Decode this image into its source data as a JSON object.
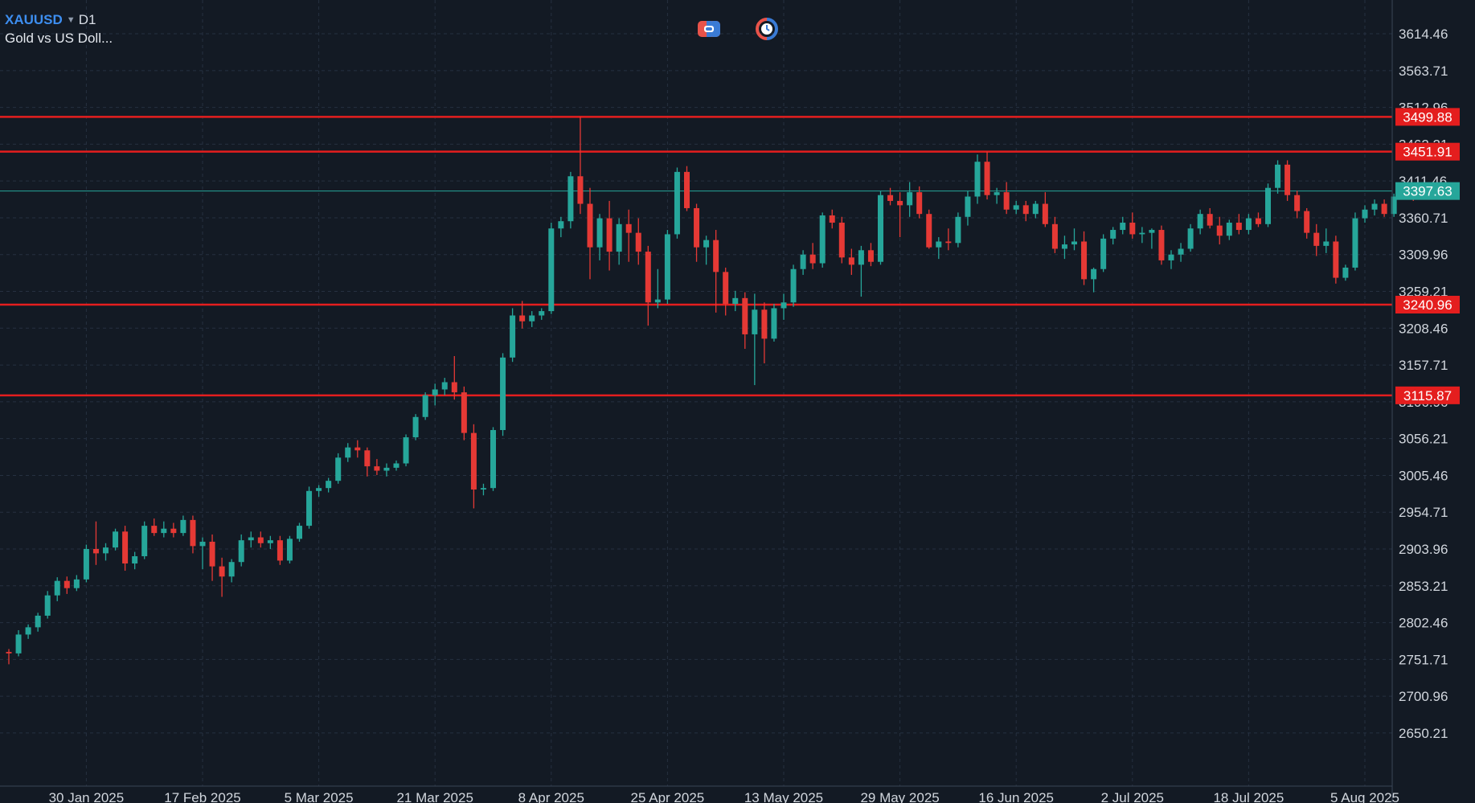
{
  "header": {
    "symbol": "XAUUSD",
    "timeframe": "D1",
    "description": "Gold vs US Doll..."
  },
  "toolbar": {
    "icons": [
      "one-click-trading-icon",
      "trade-timer-icon"
    ]
  },
  "colors": {
    "background": "#131a24",
    "grid": "#263040",
    "bull": "#26a69a",
    "bear": "#e53935",
    "level": "#e41e1e",
    "current_price": "#26a69a",
    "axis_text": "#d1d6dd"
  },
  "chart_data": {
    "type": "candlestick",
    "symbol": "XAUUSD",
    "timeframe": "D1",
    "ylim": [
      2608,
      3640
    ],
    "y_ticks": [
      3614.46,
      3563.71,
      3512.96,
      3462.21,
      3411.46,
      3360.71,
      3309.96,
      3259.21,
      3208.46,
      3157.71,
      3106.96,
      3056.21,
      3005.46,
      2954.71,
      2903.96,
      2853.21,
      2802.46,
      2751.71,
      2700.96,
      2650.21
    ],
    "x_ticks": [
      {
        "index": 8,
        "label": "30 Jan 2025"
      },
      {
        "index": 20,
        "label": "17 Feb 2025"
      },
      {
        "index": 32,
        "label": "5 Mar 2025"
      },
      {
        "index": 44,
        "label": "21 Mar 2025"
      },
      {
        "index": 56,
        "label": "8 Apr 2025"
      },
      {
        "index": 68,
        "label": "25 Apr 2025"
      },
      {
        "index": 80,
        "label": "13 May 2025"
      },
      {
        "index": 92,
        "label": "29 May 2025"
      },
      {
        "index": 104,
        "label": "16 Jun 2025"
      },
      {
        "index": 116,
        "label": "2 Jul 2025"
      },
      {
        "index": 128,
        "label": "18 Jul 2025"
      },
      {
        "index": 140,
        "label": "5 Aug 2025"
      }
    ],
    "horizontal_levels": [
      3499.88,
      3451.91,
      3240.96,
      3115.87
    ],
    "current_price": 3397.63,
    "candles": [
      [
        2762,
        2766,
        2745,
        2760
      ],
      [
        2760,
        2792,
        2756,
        2786
      ],
      [
        2786,
        2800,
        2780,
        2796
      ],
      [
        2796,
        2816,
        2790,
        2812
      ],
      [
        2812,
        2846,
        2808,
        2840
      ],
      [
        2840,
        2865,
        2832,
        2860
      ],
      [
        2860,
        2866,
        2842,
        2850
      ],
      [
        2850,
        2868,
        2846,
        2862
      ],
      [
        2862,
        2910,
        2858,
        2904
      ],
      [
        2904,
        2942,
        2882,
        2898
      ],
      [
        2898,
        2912,
        2888,
        2906
      ],
      [
        2906,
        2932,
        2902,
        2928
      ],
      [
        2928,
        2936,
        2874,
        2884
      ],
      [
        2884,
        2900,
        2876,
        2894
      ],
      [
        2894,
        2942,
        2890,
        2936
      ],
      [
        2936,
        2946,
        2922,
        2926
      ],
      [
        2926,
        2942,
        2920,
        2932
      ],
      [
        2932,
        2940,
        2920,
        2926
      ],
      [
        2926,
        2950,
        2922,
        2944
      ],
      [
        2944,
        2950,
        2898,
        2908
      ],
      [
        2908,
        2920,
        2876,
        2914
      ],
      [
        2914,
        2924,
        2860,
        2880
      ],
      [
        2880,
        2892,
        2838,
        2866
      ],
      [
        2866,
        2890,
        2858,
        2886
      ],
      [
        2886,
        2924,
        2880,
        2916
      ],
      [
        2916,
        2928,
        2906,
        2920
      ],
      [
        2920,
        2928,
        2906,
        2912
      ],
      [
        2912,
        2922,
        2904,
        2916
      ],
      [
        2916,
        2922,
        2882,
        2888
      ],
      [
        2888,
        2922,
        2884,
        2918
      ],
      [
        2918,
        2940,
        2914,
        2936
      ],
      [
        2936,
        2990,
        2932,
        2984
      ],
      [
        2984,
        2992,
        2976,
        2988
      ],
      [
        2988,
        3002,
        2982,
        2998
      ],
      [
        2998,
        3036,
        2994,
        3030
      ],
      [
        3030,
        3050,
        3024,
        3044
      ],
      [
        3044,
        3054,
        3030,
        3040
      ],
      [
        3040,
        3044,
        3004,
        3018
      ],
      [
        3018,
        3028,
        3006,
        3012
      ],
      [
        3012,
        3022,
        3004,
        3016
      ],
      [
        3016,
        3026,
        3012,
        3022
      ],
      [
        3022,
        3062,
        3018,
        3058
      ],
      [
        3058,
        3090,
        3054,
        3086
      ],
      [
        3086,
        3120,
        3082,
        3116
      ],
      [
        3116,
        3132,
        3102,
        3124
      ],
      [
        3124,
        3140,
        3116,
        3134
      ],
      [
        3134,
        3170,
        3110,
        3120
      ],
      [
        3120,
        3128,
        3054,
        3064
      ],
      [
        3064,
        3076,
        2960,
        2986
      ],
      [
        2986,
        2994,
        2978,
        2988
      ],
      [
        2988,
        3072,
        2984,
        3068
      ],
      [
        3068,
        3174,
        3060,
        3168
      ],
      [
        3168,
        3236,
        3162,
        3226
      ],
      [
        3226,
        3246,
        3208,
        3218
      ],
      [
        3218,
        3232,
        3210,
        3226
      ],
      [
        3226,
        3236,
        3220,
        3232
      ],
      [
        3232,
        3354,
        3228,
        3346
      ],
      [
        3346,
        3362,
        3334,
        3356
      ],
      [
        3356,
        3424,
        3346,
        3418
      ],
      [
        3418,
        3500,
        3366,
        3380
      ],
      [
        3380,
        3402,
        3276,
        3320
      ],
      [
        3320,
        3366,
        3302,
        3360
      ],
      [
        3360,
        3384,
        3288,
        3314
      ],
      [
        3314,
        3360,
        3296,
        3352
      ],
      [
        3352,
        3372,
        3300,
        3340
      ],
      [
        3340,
        3360,
        3296,
        3314
      ],
      [
        3314,
        3322,
        3212,
        3244
      ],
      [
        3244,
        3290,
        3236,
        3248
      ],
      [
        3248,
        3344,
        3242,
        3338
      ],
      [
        3338,
        3430,
        3332,
        3424
      ],
      [
        3424,
        3432,
        3370,
        3374
      ],
      [
        3374,
        3380,
        3300,
        3320
      ],
      [
        3320,
        3336,
        3296,
        3330
      ],
      [
        3330,
        3344,
        3230,
        3286
      ],
      [
        3286,
        3292,
        3226,
        3242
      ],
      [
        3242,
        3260,
        3232,
        3250
      ],
      [
        3250,
        3258,
        3180,
        3200
      ],
      [
        3200,
        3256,
        3130,
        3234
      ],
      [
        3234,
        3244,
        3160,
        3194
      ],
      [
        3194,
        3242,
        3190,
        3236
      ],
      [
        3236,
        3256,
        3220,
        3244
      ],
      [
        3244,
        3296,
        3238,
        3290
      ],
      [
        3290,
        3316,
        3282,
        3310
      ],
      [
        3310,
        3326,
        3290,
        3298
      ],
      [
        3298,
        3368,
        3292,
        3364
      ],
      [
        3364,
        3372,
        3346,
        3354
      ],
      [
        3354,
        3362,
        3298,
        3306
      ],
      [
        3306,
        3318,
        3282,
        3296
      ],
      [
        3296,
        3322,
        3252,
        3316
      ],
      [
        3316,
        3326,
        3294,
        3300
      ],
      [
        3300,
        3398,
        3296,
        3392
      ],
      [
        3392,
        3402,
        3378,
        3384
      ],
      [
        3384,
        3396,
        3334,
        3378
      ],
      [
        3378,
        3410,
        3362,
        3396
      ],
      [
        3396,
        3404,
        3360,
        3366
      ],
      [
        3366,
        3372,
        3318,
        3320
      ],
      [
        3320,
        3334,
        3304,
        3328
      ],
      [
        3328,
        3346,
        3316,
        3326
      ],
      [
        3326,
        3368,
        3320,
        3362
      ],
      [
        3362,
        3398,
        3350,
        3390
      ],
      [
        3390,
        3448,
        3380,
        3438
      ],
      [
        3438,
        3452,
        3386,
        3392
      ],
      [
        3392,
        3402,
        3380,
        3396
      ],
      [
        3396,
        3410,
        3366,
        3372
      ],
      [
        3372,
        3384,
        3366,
        3378
      ],
      [
        3378,
        3384,
        3356,
        3366
      ],
      [
        3366,
        3384,
        3360,
        3380
      ],
      [
        3380,
        3396,
        3348,
        3352
      ],
      [
        3352,
        3362,
        3312,
        3318
      ],
      [
        3318,
        3336,
        3304,
        3324
      ],
      [
        3324,
        3346,
        3316,
        3328
      ],
      [
        3328,
        3342,
        3268,
        3276
      ],
      [
        3276,
        3292,
        3258,
        3290
      ],
      [
        3290,
        3338,
        3286,
        3332
      ],
      [
        3332,
        3348,
        3324,
        3344
      ],
      [
        3344,
        3362,
        3338,
        3354
      ],
      [
        3354,
        3368,
        3332,
        3338
      ],
      [
        3338,
        3348,
        3326,
        3340
      ],
      [
        3340,
        3346,
        3318,
        3344
      ],
      [
        3344,
        3350,
        3296,
        3302
      ],
      [
        3302,
        3316,
        3290,
        3310
      ],
      [
        3310,
        3326,
        3300,
        3318
      ],
      [
        3318,
        3352,
        3314,
        3346
      ],
      [
        3346,
        3372,
        3338,
        3366
      ],
      [
        3366,
        3374,
        3346,
        3350
      ],
      [
        3350,
        3362,
        3324,
        3336
      ],
      [
        3336,
        3358,
        3330,
        3354
      ],
      [
        3354,
        3366,
        3338,
        3344
      ],
      [
        3344,
        3366,
        3338,
        3360
      ],
      [
        3360,
        3368,
        3348,
        3352
      ],
      [
        3352,
        3408,
        3348,
        3402
      ],
      [
        3402,
        3440,
        3394,
        3434
      ],
      [
        3434,
        3440,
        3384,
        3392
      ],
      [
        3392,
        3398,
        3360,
        3370
      ],
      [
        3370,
        3374,
        3332,
        3340
      ],
      [
        3340,
        3352,
        3308,
        3322
      ],
      [
        3322,
        3346,
        3312,
        3328
      ],
      [
        3328,
        3336,
        3270,
        3278
      ],
      [
        3278,
        3296,
        3274,
        3292
      ],
      [
        3292,
        3368,
        3288,
        3360
      ],
      [
        3360,
        3378,
        3354,
        3372
      ],
      [
        3372,
        3386,
        3364,
        3380
      ],
      [
        3380,
        3386,
        3362,
        3366
      ],
      [
        3366,
        3394,
        3362,
        3390
      ],
      [
        3390,
        3410,
        3386,
        3402
      ],
      [
        3402,
        3408,
        3384,
        3397.63
      ]
    ]
  }
}
